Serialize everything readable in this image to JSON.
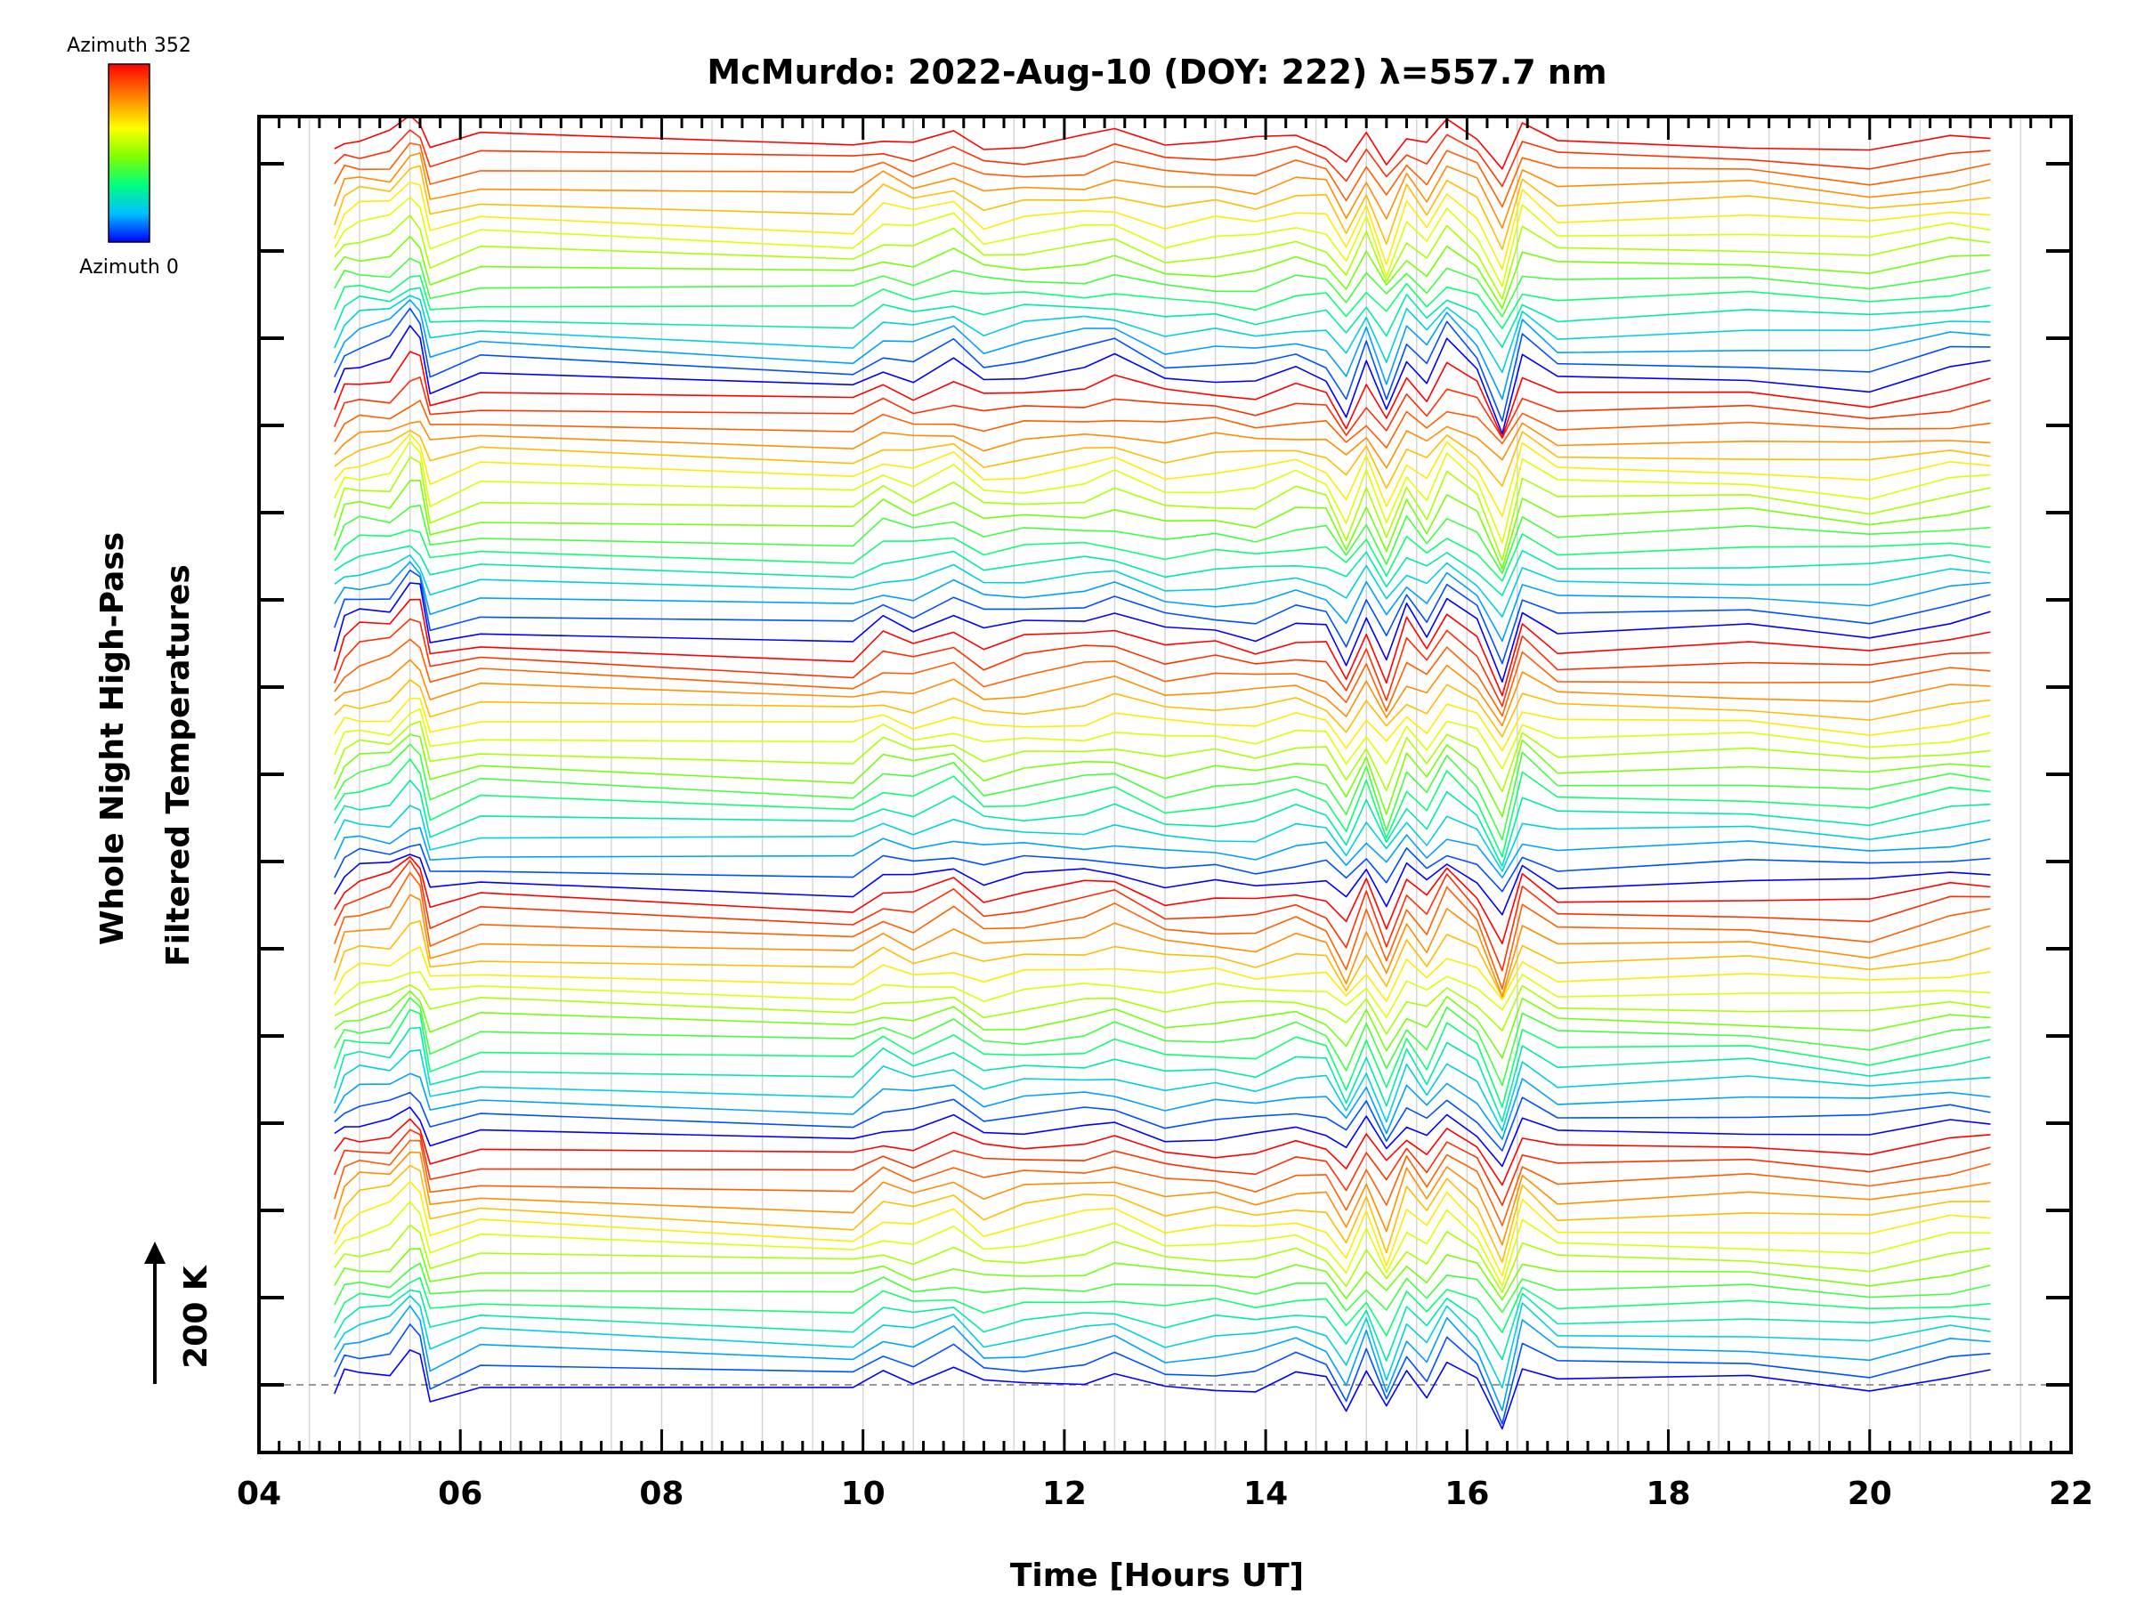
{
  "chart_data": {
    "type": "line",
    "title": "McMurdo: 2022-Aug-10 (DOY: 222) λ=557.7 nm",
    "xlabel": "Time [Hours UT]",
    "ylabel_line1": "Whole Night High-Pass",
    "ylabel_line2": "Filtered Temperatures",
    "scale_label": "200 K",
    "xlim": [
      4,
      22
    ],
    "x_ticks": [
      "04",
      "06",
      "08",
      "10",
      "12",
      "14",
      "16",
      "18",
      "20",
      "22"
    ],
    "colorbar": {
      "top_label": "Azimuth 352",
      "bottom_label": "Azimuth 0",
      "colors": [
        "#ff0000",
        "#ff8000",
        "#ffff00",
        "#80ff00",
        "#00ff80",
        "#00c0ff",
        "#0000ff"
      ]
    },
    "sample_times": [
      4.75,
      4.85,
      5.0,
      5.3,
      5.5,
      5.6,
      5.7,
      6.2,
      9.9,
      10.2,
      10.5,
      10.9,
      11.2,
      11.6,
      12.2,
      12.5,
      13.0,
      13.5,
      13.9,
      14.3,
      14.6,
      14.8,
      15.0,
      15.2,
      15.4,
      15.6,
      15.8,
      16.1,
      16.35,
      16.55,
      16.9,
      18.8,
      20.0,
      20.8,
      21.2
    ],
    "baseline_shape": [
      -0.5,
      0.3,
      0.5,
      0.6,
      1.4,
      1.2,
      -0.4,
      0.1,
      -0.3,
      0.4,
      0.1,
      0.6,
      -0.1,
      0.1,
      0.3,
      0.5,
      -0.1,
      0.0,
      -0.1,
      0.3,
      0.1,
      -1.0,
      0.5,
      -1.1,
      0.6,
      -0.2,
      1.0,
      0.2,
      -1.6,
      0.8,
      0.0,
      0.1,
      -0.2,
      0.3,
      0.4
    ],
    "groups": 5,
    "azimuth_steps": 16,
    "azimuth_range_deg": [
      0,
      352
    ]
  }
}
